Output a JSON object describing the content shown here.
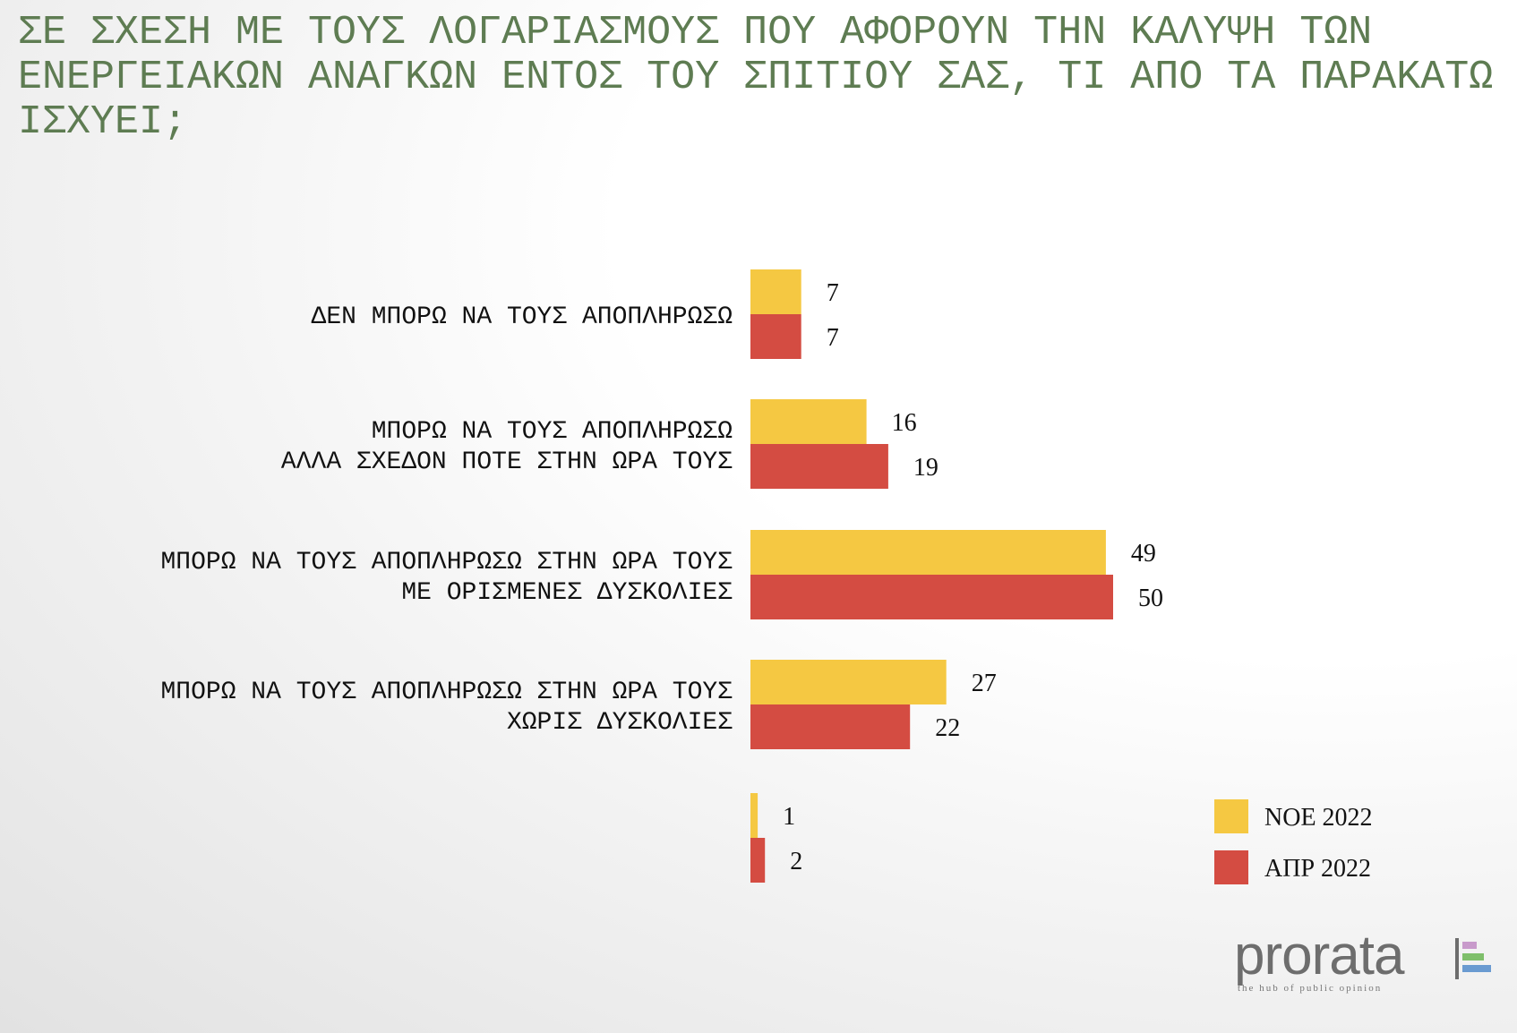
{
  "title": "ΣΕ ΣΧΕΣΗ ΜΕ ΤΟΥΣ ΛΟΓΑΡΙΑΣΜΟΥΣ ΠΟΥ ΑΦΟΡΟΥΝ ΤΗΝ ΚΑΛΥΨΗ ΤΩΝ ΕΝΕΡΓΕΙΑΚΩΝ ΑΝΑΓΚΩΝ ΕΝΤΟΣ ΤΟΥ ΣΠΙΤΙΟΥ ΣΑΣ, ΤΙ ΑΠΟ ΤΑ ΠΑΡΑΚΑΤΩ ΙΣΧΥΕΙ;",
  "colors": {
    "title": "#5e7c52",
    "series_1": "#f5c842",
    "series_2": "#d44c42"
  },
  "chart_data": {
    "type": "bar",
    "orientation": "horizontal",
    "categories": [
      [
        "ΔΕΝ ΜΠΟΡΩ ΝΑ ΤΟΥΣ ΑΠΟΠΛΗΡΩΣΩ"
      ],
      [
        "ΜΠΟΡΩ ΝΑ ΤΟΥΣ ΑΠΟΠΛΗΡΩΣΩ",
        "ΑΛΛΑ ΣΧΕΔΟΝ ΠΟΤΕ ΣΤΗΝ ΩΡΑ ΤΟΥΣ"
      ],
      [
        "ΜΠΟΡΩ ΝΑ ΤΟΥΣ ΑΠΟΠΛΗΡΩΣΩ ΣΤΗΝ ΩΡΑ ΤΟΥΣ",
        "ΜΕ ΟΡΙΣΜΕΝΕΣ ΔΥΣΚΟΛΙΕΣ"
      ],
      [
        "ΜΠΟΡΩ ΝΑ ΤΟΥΣ ΑΠΟΠΛΗΡΩΣΩ ΣΤΗΝ ΩΡΑ ΤΟΥΣ",
        "ΧΩΡΙΣ ΔΥΣΚΟΛΙΕΣ"
      ],
      []
    ],
    "series": [
      {
        "name": "ΝΟΕ 2022",
        "color": "#f5c842",
        "values": [
          7,
          16,
          49,
          27,
          1
        ]
      },
      {
        "name": "ΑΠΡ 2022",
        "color": "#d44c42",
        "values": [
          7,
          19,
          50,
          22,
          2
        ]
      }
    ],
    "xlim": [
      0,
      50
    ],
    "grid": false,
    "legend_position": "bottom-right",
    "data_labels": true
  },
  "logo": {
    "wordmark": "prorata",
    "tagline": "the hub of public opinion"
  }
}
